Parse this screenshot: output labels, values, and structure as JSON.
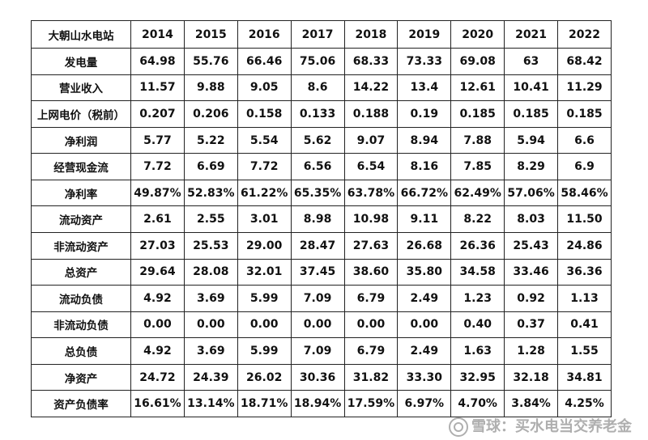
{
  "table": {
    "header": [
      "大朝山水电站",
      "2014",
      "2015",
      "2016",
      "2017",
      "2018",
      "2019",
      "2020",
      "2021",
      "2022"
    ],
    "rows": [
      [
        "发电量",
        "64.98",
        "55.76",
        "66.46",
        "75.06",
        "68.33",
        "73.33",
        "69.08",
        "63",
        "68.42"
      ],
      [
        "营业收入",
        "11.57",
        "9.88",
        "9.05",
        "8.6",
        "14.22",
        "13.4",
        "12.61",
        "10.41",
        "11.29"
      ],
      [
        "上网电价（税前）",
        "0.207",
        "0.206",
        "0.158",
        "0.133",
        "0.188",
        "0.19",
        "0.185",
        "0.185",
        "0.185"
      ],
      [
        "净利润",
        "5.77",
        "5.22",
        "5.54",
        "5.62",
        "9.07",
        "8.94",
        "7.88",
        "5.94",
        "6.6"
      ],
      [
        "经营现金流",
        "7.72",
        "6.69",
        "7.72",
        "6.56",
        "6.54",
        "8.16",
        "7.85",
        "8.29",
        "6.9"
      ],
      [
        "净利率",
        "49.87%",
        "52.83%",
        "61.22%",
        "65.35%",
        "63.78%",
        "66.72%",
        "62.49%",
        "57.06%",
        "58.46%"
      ],
      [
        "流动资产",
        "2.61",
        "2.55",
        "3.01",
        "8.98",
        "10.98",
        "9.11",
        "8.22",
        "8.03",
        "11.50"
      ],
      [
        "非流动资产",
        "27.03",
        "25.53",
        "29.00",
        "28.47",
        "27.63",
        "26.68",
        "26.36",
        "25.43",
        "24.86"
      ],
      [
        "总资产",
        "29.64",
        "28.08",
        "32.01",
        "37.45",
        "38.60",
        "35.80",
        "34.58",
        "33.46",
        "36.36"
      ],
      [
        "流动负债",
        "4.92",
        "3.69",
        "5.99",
        "7.09",
        "6.79",
        "2.49",
        "1.23",
        "0.92",
        "1.13"
      ],
      [
        "非流动负债",
        "0.00",
        "0.00",
        "0.00",
        "0.00",
        "0.00",
        "0.00",
        "0.40",
        "0.37",
        "0.41"
      ],
      [
        "总负债",
        "4.92",
        "3.69",
        "5.99",
        "7.09",
        "6.79",
        "2.49",
        "1.63",
        "1.28",
        "1.55"
      ],
      [
        "净资产",
        "24.72",
        "24.39",
        "26.02",
        "30.36",
        "31.82",
        "33.30",
        "32.95",
        "32.18",
        "34.81"
      ],
      [
        "资产负债率",
        "16.61%",
        "13.14%",
        "18.71%",
        "18.94%",
        "17.59%",
        "6.97%",
        "4.70%",
        "3.84%",
        "4.25%"
      ]
    ]
  },
  "watermark": {
    "text": "雪球：买水电当交养老金",
    "icon": "snowball-logo-icon"
  }
}
